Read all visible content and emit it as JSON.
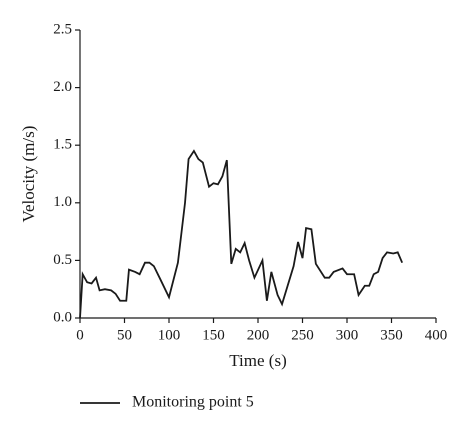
{
  "chart_data": {
    "type": "line",
    "x_label": "Time (s)",
    "y_label": "Velocity (m/s)",
    "x": [
      0,
      3,
      8,
      13,
      18,
      22,
      28,
      35,
      40,
      45,
      52,
      55,
      62,
      67,
      73,
      78,
      83,
      90,
      100,
      110,
      118,
      122,
      128,
      133,
      138,
      145,
      150,
      155,
      160,
      165,
      170,
      175,
      180,
      185,
      190,
      196,
      205,
      210,
      215,
      222,
      227,
      240,
      245,
      250,
      254,
      260,
      265,
      275,
      280,
      285,
      295,
      300,
      308,
      313,
      320,
      325,
      330,
      335,
      340,
      345,
      352,
      357,
      362
    ],
    "series": [
      {
        "name": "Monitoring point 5",
        "color": "#1a1a1a",
        "values": [
          0.0,
          0.38,
          0.31,
          0.3,
          0.35,
          0.24,
          0.25,
          0.24,
          0.21,
          0.15,
          0.15,
          0.42,
          0.4,
          0.38,
          0.48,
          0.48,
          0.45,
          0.34,
          0.18,
          0.48,
          1.0,
          1.38,
          1.45,
          1.38,
          1.35,
          1.14,
          1.17,
          1.16,
          1.23,
          1.37,
          0.47,
          0.6,
          0.57,
          0.65,
          0.5,
          0.35,
          0.5,
          0.15,
          0.4,
          0.2,
          0.12,
          0.45,
          0.66,
          0.52,
          0.78,
          0.77,
          0.47,
          0.35,
          0.35,
          0.4,
          0.43,
          0.38,
          0.38,
          0.2,
          0.28,
          0.28,
          0.38,
          0.4,
          0.52,
          0.57,
          0.56,
          0.57,
          0.48
        ]
      }
    ],
    "xlim": [
      0,
      400
    ],
    "xticks": [
      0,
      50,
      100,
      150,
      200,
      250,
      300,
      350,
      400
    ],
    "ylim": [
      0,
      2.5
    ],
    "yticks": [
      {
        "value": 0,
        "label": "0.0"
      },
      0.5,
      {
        "value": 1,
        "label": "1.0"
      },
      1.5,
      {
        "value": 2,
        "label": "2.0"
      },
      2.5
    ],
    "legend": "bottom"
  }
}
